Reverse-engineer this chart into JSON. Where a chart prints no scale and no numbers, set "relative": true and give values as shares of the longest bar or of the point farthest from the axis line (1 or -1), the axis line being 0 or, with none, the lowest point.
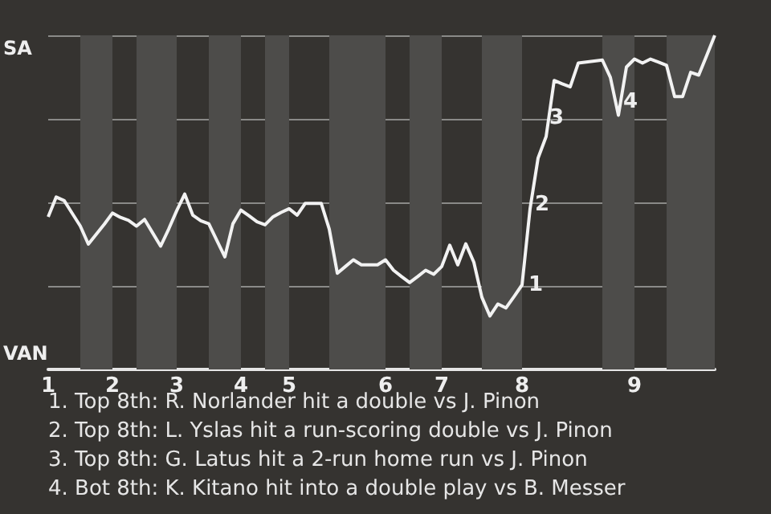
{
  "chart_data": {
    "type": "line",
    "relative": true,
    "categories": [
      "1",
      null,
      null,
      null,
      null,
      null,
      null,
      null,
      "2",
      null,
      null,
      null,
      null,
      null,
      null,
      null,
      "3",
      null,
      null,
      null,
      null,
      null,
      null,
      null,
      "4",
      null,
      null,
      null,
      null,
      null,
      "5",
      null,
      null,
      null,
      null,
      null,
      null,
      null,
      null,
      null,
      null,
      null,
      "6",
      null,
      null,
      null,
      null,
      null,
      null,
      "7",
      null,
      null,
      null,
      null,
      null,
      null,
      null,
      null,
      null,
      "8",
      null,
      null,
      null,
      null,
      null,
      null,
      null,
      null,
      null,
      null,
      null,
      null,
      null,
      "9",
      null,
      null,
      null,
      null,
      null,
      null,
      null,
      null,
      null,
      null
    ],
    "series": [
      {
        "color": "#f2f2f2",
        "values": [
          0.457,
          0.516,
          0.505,
          0.467,
          0.429,
          0.375,
          0.405,
          0.435,
          0.468,
          0.455,
          0.446,
          0.429,
          0.449,
          0.409,
          0.369,
          0.42,
          0.475,
          0.525,
          0.462,
          0.445,
          0.436,
          0.386,
          0.337,
          0.436,
          0.477,
          0.46,
          0.442,
          0.433,
          0.457,
          0.47,
          0.481,
          0.462,
          0.497,
          0.497,
          0.497,
          0.42,
          0.288,
          0.308,
          0.328,
          0.313,
          0.313,
          0.313,
          0.328,
          0.297,
          0.278,
          0.26,
          0.278,
          0.297,
          0.285,
          0.308,
          0.372,
          0.313,
          0.376,
          0.321,
          0.216,
          0.16,
          0.196,
          0.184,
          0.218,
          0.253,
          0.481,
          0.633,
          0.697,
          0.865,
          0.855,
          0.846,
          0.917,
          0.92,
          0.923,
          0.926,
          0.874,
          0.761,
          0.905,
          0.929,
          0.917,
          0.929,
          0.92,
          0.91,
          0.817,
          0.817,
          0.889,
          0.881,
          0.94,
          1
        ]
      }
    ],
    "grid": "y",
    "marker": "none",
    "annotations": [
      "SA",
      "VAN",
      {
        "text": "1",
        "x": "8",
        "y": 0.253
      },
      "2",
      "3",
      "4",
      "1. Top 8th: R. Norlander hit a double vs J. Pinon",
      "2. Top 8th: L. Yslas hit a run-scoring double vs J. Pinon",
      "3. Top 8th: G. Latus hit a 2-run home run vs J. Pinon",
      "4. Bot 8th: K. Kitano hit into a double play vs B. Messer"
    ]
  }
}
